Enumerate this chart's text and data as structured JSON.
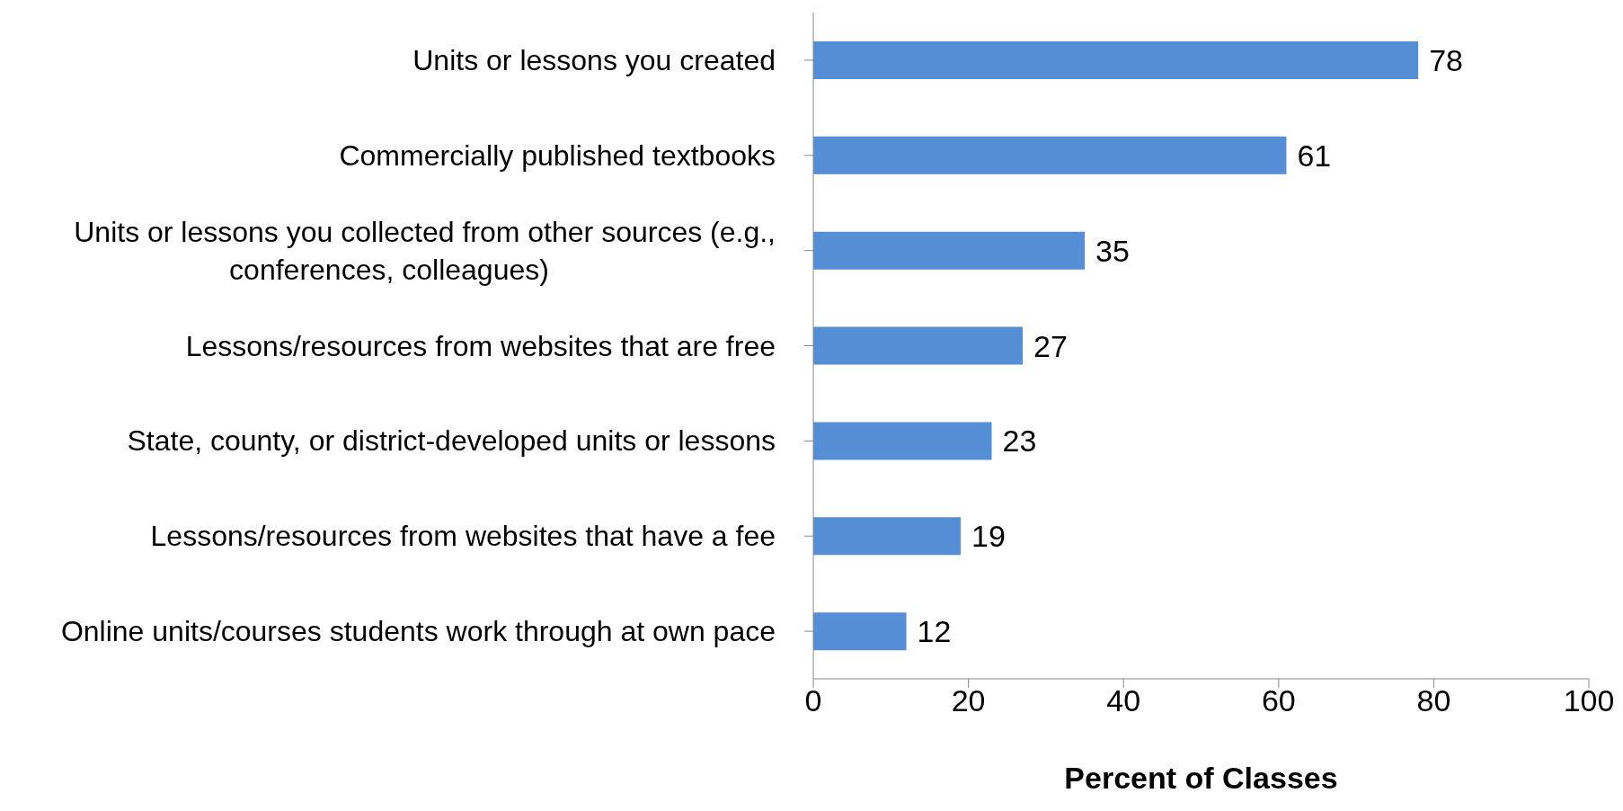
{
  "chart_data": {
    "type": "bar",
    "orientation": "horizontal",
    "xlabel": "Percent of Classes",
    "categories": [
      "Units or lessons you created",
      "Commercially published textbooks",
      "Units or lessons you collected from other sources (e.g., conferences, colleagues)",
      "Lessons/resources from websites that are free",
      "State, county, or district-developed units or lessons",
      "Lessons/resources from websites that have a fee",
      "Online units/courses students work through at own pace"
    ],
    "values": [
      78,
      61,
      35,
      27,
      23,
      19,
      12
    ],
    "color": "#558ed5",
    "xlim": [
      0,
      100
    ],
    "xticks": [
      0,
      20,
      40,
      60,
      80,
      100
    ],
    "grid": false,
    "data_labels": true
  }
}
